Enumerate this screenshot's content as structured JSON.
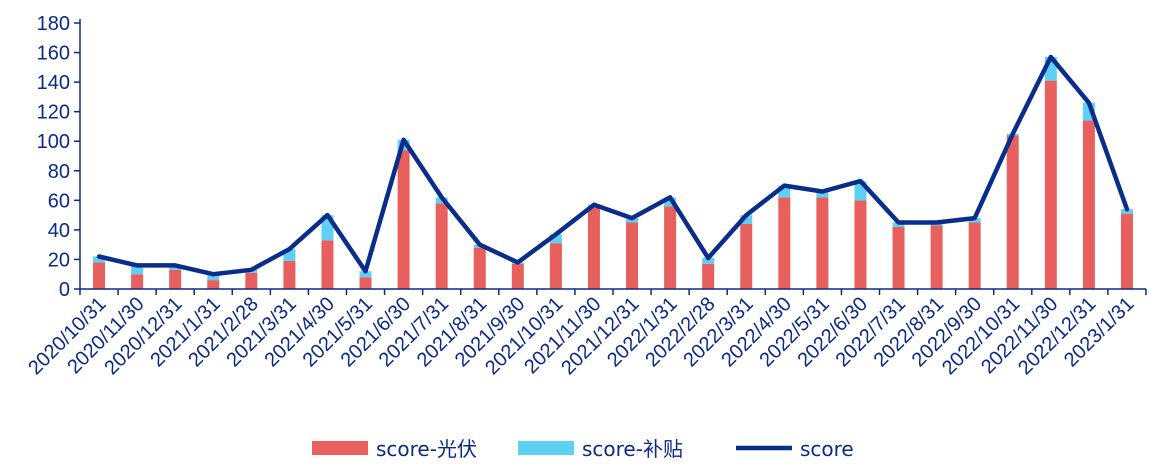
{
  "chart_data": {
    "type": "bar",
    "title": "",
    "xlabel": "",
    "ylabel": "",
    "ylim": [
      0,
      180
    ],
    "yticks": [
      0,
      20,
      40,
      60,
      80,
      100,
      120,
      140,
      160,
      180
    ],
    "grid": false,
    "legend_position": "bottom",
    "categories": [
      "2020/10/31",
      "2020/11/30",
      "2020/12/31",
      "2021/1/31",
      "2021/2/28",
      "2021/3/31",
      "2021/4/30",
      "2021/5/31",
      "2021/6/30",
      "2021/7/31",
      "2021/8/31",
      "2021/9/30",
      "2021/10/31",
      "2021/11/30",
      "2021/12/31",
      "2022/1/31",
      "2022/2/28",
      "2022/3/31",
      "2022/4/30",
      "2022/5/31",
      "2022/6/30",
      "2022/7/31",
      "2022/8/31",
      "2022/9/30",
      "2022/10/31",
      "2022/11/30",
      "2022/12/31",
      "2023/1/31"
    ],
    "series": [
      {
        "name": "score-光伏",
        "type": "bar",
        "stacked": true,
        "color": "#e8605d",
        "values": [
          18,
          10,
          13,
          6,
          11,
          19,
          33,
          8,
          94,
          58,
          28,
          17,
          31,
          55,
          45,
          56,
          17,
          44,
          62,
          62,
          60,
          42,
          43,
          45,
          104,
          141,
          114,
          51
        ]
      },
      {
        "name": "score-补贴",
        "type": "bar",
        "stacked": true,
        "color": "#5fd0f5",
        "values": [
          4,
          6,
          2,
          4,
          2,
          8,
          17,
          4,
          7,
          4,
          2,
          1,
          6,
          2,
          3,
          6,
          4,
          6,
          8,
          4,
          13,
          3,
          2,
          3,
          1,
          16,
          12,
          3
        ]
      },
      {
        "name": "score",
        "type": "line",
        "color": "#0a2d8a",
        "values": [
          22,
          16,
          16,
          10,
          13,
          27,
          50,
          12,
          101,
          62,
          30,
          18,
          37,
          57,
          48,
          62,
          21,
          50,
          70,
          66,
          73,
          45,
          45,
          48,
          105,
          157,
          126,
          54
        ]
      }
    ]
  }
}
